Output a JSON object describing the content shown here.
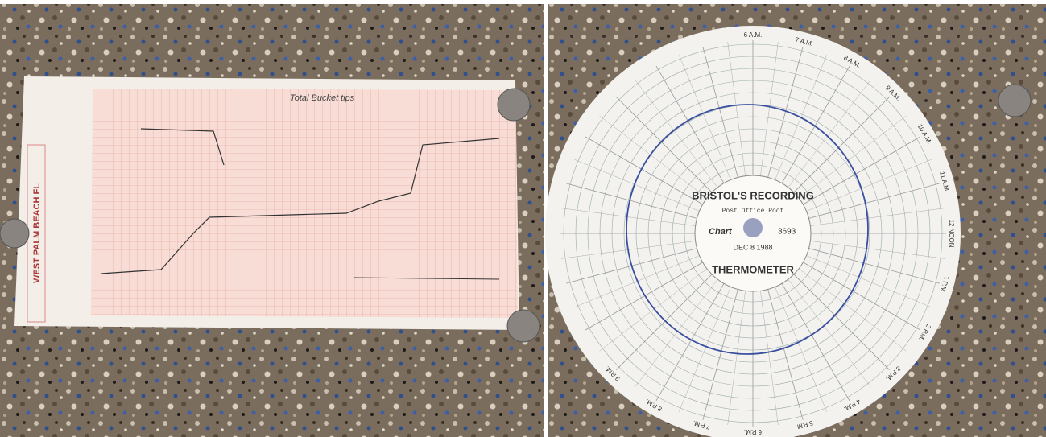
{
  "left_chart": {
    "station": "WEST PALM BEACH FL",
    "note": "Total Bucket tips"
  },
  "right_chart": {
    "title_top": "BRISTOL'S RECORDING",
    "title_bottom": "THERMOMETER",
    "brand": "Chart",
    "number": "3693",
    "date": "DEC 8 1988",
    "location": "Post Office Roof",
    "hour_labels": [
      "6 A.M.",
      "7 A.M.",
      "8 A.M.",
      "9 A.M.",
      "10 A.M.",
      "11 A.M.",
      "12 NOON",
      "1 P.M.",
      "2 P.M.",
      "3 P.M.",
      "4 P.M.",
      "5 P.M.",
      "6 P.M.",
      "7 P.M.",
      "8 P.M.",
      "9 P.M."
    ]
  }
}
